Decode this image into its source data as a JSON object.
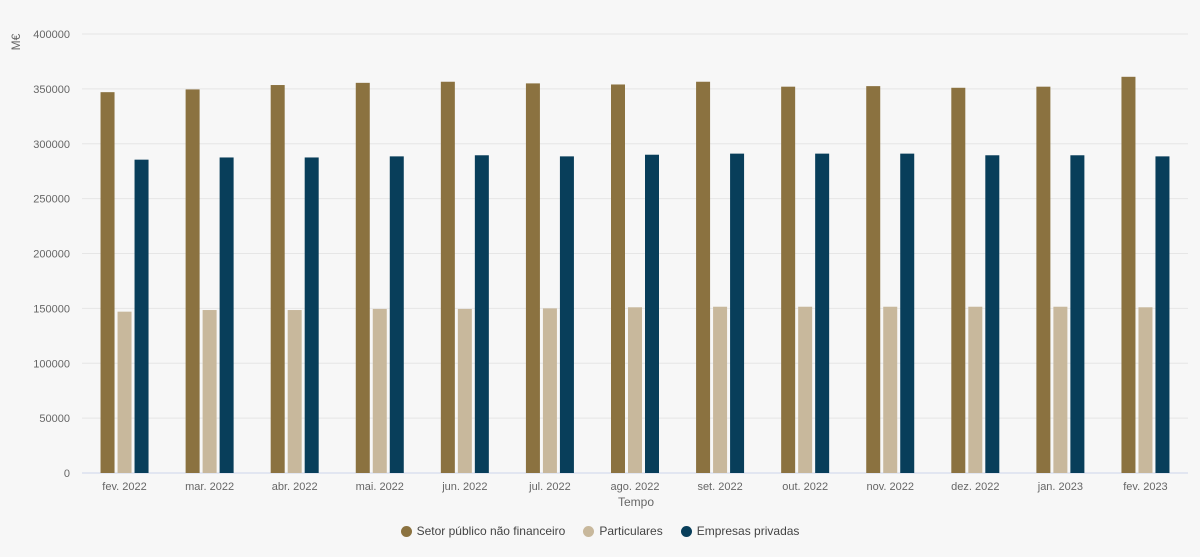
{
  "chart_data": {
    "type": "bar",
    "ylabel": "M€",
    "xlabel": "Tempo",
    "ylim": [
      0,
      400000
    ],
    "yticks": [
      0,
      50000,
      100000,
      150000,
      200000,
      250000,
      300000,
      350000,
      400000
    ],
    "grid": true,
    "legend_position": "bottom-center",
    "categories": [
      "fev. 2022",
      "mar. 2022",
      "abr. 2022",
      "mai. 2022",
      "jun. 2022",
      "jul. 2022",
      "ago. 2022",
      "set. 2022",
      "out. 2022",
      "nov. 2022",
      "dez. 2022",
      "jan. 2023",
      "fev. 2023"
    ],
    "series": [
      {
        "name": "Setor público não financeiro",
        "color": "#8b7240",
        "values": [
          347000,
          349500,
          353500,
          355500,
          356500,
          355000,
          354000,
          356500,
          352000,
          352500,
          351000,
          352000,
          361000
        ]
      },
      {
        "name": "Particulares",
        "color": "#c8b89c",
        "values": [
          147000,
          148500,
          148500,
          149500,
          149500,
          150000,
          151000,
          151500,
          151500,
          151500,
          151500,
          151500,
          151000
        ]
      },
      {
        "name": "Empresas privadas",
        "color": "#083e5a",
        "values": [
          285500,
          287500,
          287500,
          288500,
          289500,
          288500,
          290000,
          291000,
          291000,
          291000,
          289500,
          289500,
          288500
        ]
      }
    ]
  }
}
